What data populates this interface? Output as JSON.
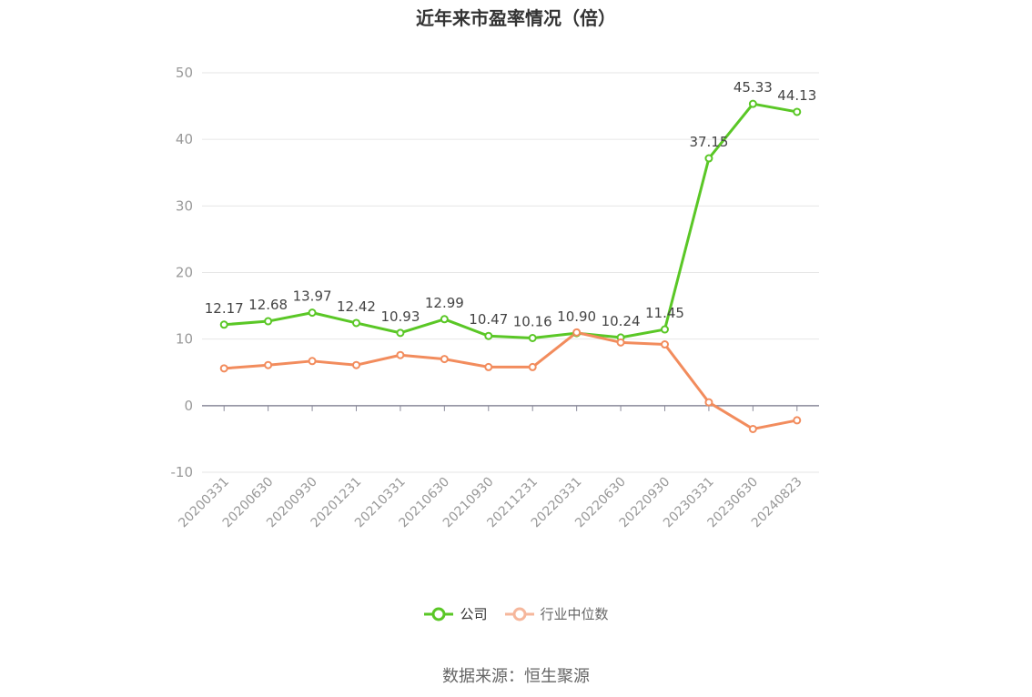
{
  "title": "近年来市盈率情况（倍）",
  "source": "数据来源：恒生聚源",
  "legend": {
    "company": "公司",
    "industry": "行业中位数"
  },
  "colors": {
    "company": "#5ac726",
    "industry": "#f28c5d",
    "industry_legend": "#f6b79c",
    "axis": "#999999",
    "grid": "#e6e6e6",
    "label": "#444444"
  },
  "chart_data": {
    "type": "line",
    "title": "近年来市盈率情况（倍）",
    "xlabel": "",
    "ylabel": "",
    "ylim": [
      -10,
      50
    ],
    "yticks": [
      -10,
      0,
      10,
      20,
      30,
      40,
      50
    ],
    "grid": true,
    "legend_position": "bottom-center",
    "categories": [
      "20200331",
      "20200630",
      "20200930",
      "20201231",
      "20210331",
      "20210630",
      "20210930",
      "20211231",
      "20220331",
      "20220630",
      "20220930",
      "20230331",
      "20230630",
      "20240823"
    ],
    "series": [
      {
        "name": "公司",
        "values": [
          12.17,
          12.68,
          13.97,
          12.42,
          10.93,
          12.99,
          10.47,
          10.16,
          10.9,
          10.24,
          11.45,
          37.15,
          45.33,
          44.13
        ],
        "labels": [
          "12.17",
          "12.68",
          "13.97",
          "12.42",
          "10.93",
          "12.99",
          "10.47",
          "10.16",
          "10.90",
          "10.24",
          "11.45",
          "37.15",
          "45.33",
          "44.13"
        ]
      },
      {
        "name": "行业中位数",
        "values": [
          5.6,
          6.1,
          6.7,
          6.1,
          7.6,
          7.0,
          5.8,
          5.8,
          11.0,
          9.5,
          9.2,
          0.5,
          -3.5,
          -2.2
        ]
      }
    ]
  }
}
